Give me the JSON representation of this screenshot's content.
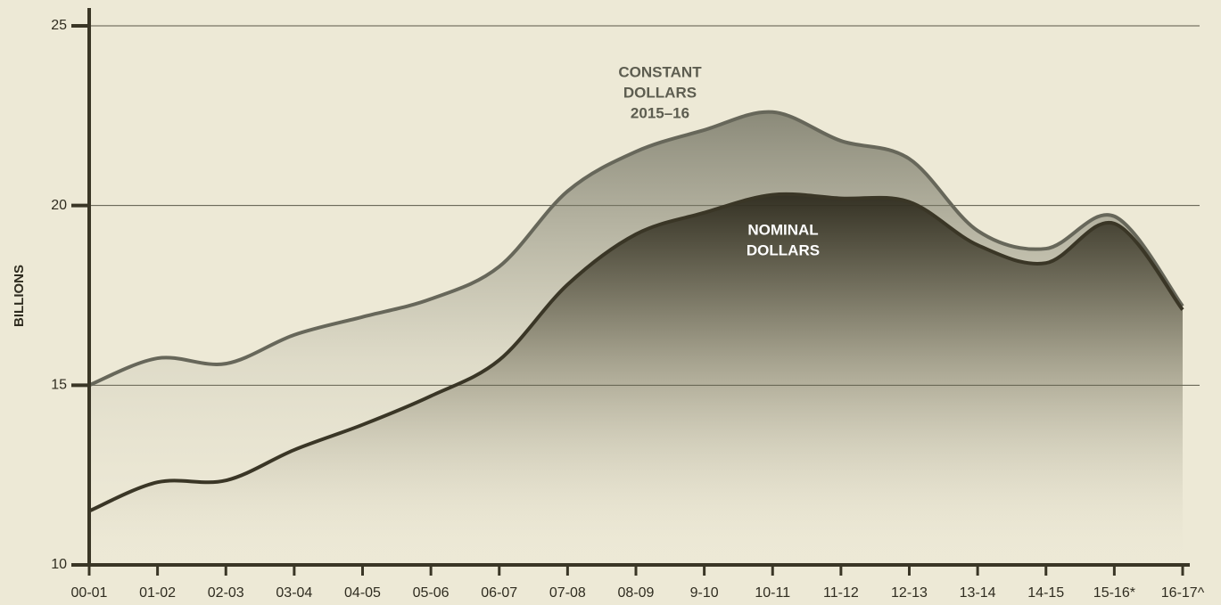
{
  "chart_data": {
    "type": "line",
    "y_axis_label": "BILLIONS",
    "categories": [
      "00-01",
      "01-02",
      "02-03",
      "03-04",
      "04-05",
      "05-06",
      "06-07",
      "07-08",
      "08-09",
      "9-10",
      "10-11",
      "11-12",
      "12-13",
      "13-14",
      "14-15",
      "15-16*",
      "16-17^"
    ],
    "series": [
      {
        "name": "CONSTANT DOLLARS 2015–16",
        "color": "#67675a",
        "values": [
          15.0,
          15.75,
          15.6,
          16.4,
          16.9,
          17.4,
          18.3,
          20.4,
          21.5,
          22.1,
          22.6,
          21.8,
          21.3,
          19.3,
          18.8,
          19.7,
          17.2
        ]
      },
      {
        "name": "NOMINAL DOLLARS",
        "color": "#3a3626",
        "values": [
          11.5,
          12.3,
          12.35,
          13.2,
          13.9,
          14.7,
          15.7,
          17.8,
          19.2,
          19.8,
          20.3,
          20.2,
          20.1,
          18.9,
          18.4,
          19.5,
          17.1
        ]
      }
    ],
    "annotations": [
      {
        "lines": [
          "CONSTANT",
          "DOLLARS",
          "2015–16"
        ],
        "color": "#5d5d50"
      },
      {
        "lines": [
          "NOMINAL",
          "DOLLARS"
        ],
        "color": "#ffffff"
      }
    ],
    "ylim": [
      10,
      25.5
    ],
    "yticks": [
      10,
      15,
      20,
      25
    ],
    "grid": true
  }
}
